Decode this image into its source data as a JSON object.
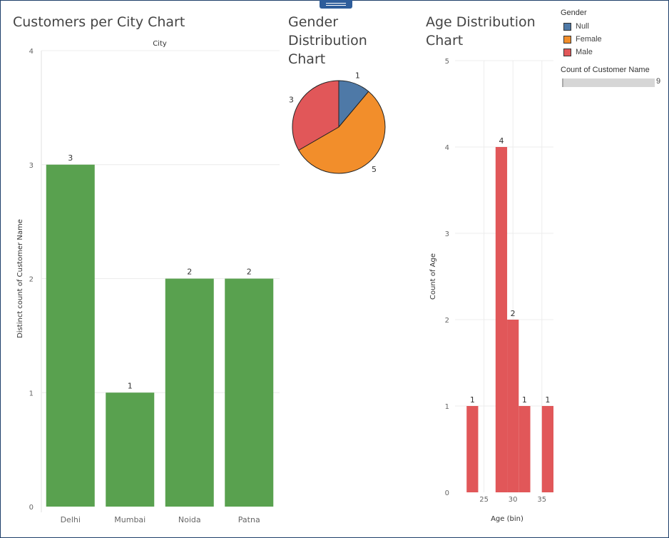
{
  "colors": {
    "green": "#59a14f",
    "null": "#4e79a7",
    "female": "#f28e2b",
    "male": "#e15759",
    "grid": "#ececec",
    "axis_text": "#666666"
  },
  "charts": {
    "city": {
      "title": "Customers per City Chart"
    },
    "gender": {
      "title_lines": [
        "Gender",
        "Distribution",
        "Chart"
      ]
    },
    "age": {
      "title_lines": [
        "Age Distribution",
        "Chart"
      ]
    }
  },
  "legend": {
    "title": "Gender",
    "items": [
      {
        "label": "Null",
        "color": "#4e79a7"
      },
      {
        "label": "Female",
        "color": "#f28e2b"
      },
      {
        "label": "Male",
        "color": "#e15759"
      }
    ],
    "size_title": "Count of Customer Name",
    "size_max_label": "9"
  },
  "chart_data": [
    {
      "type": "bar",
      "title": "Customers per City Chart",
      "column_header": "City",
      "ylabel": "Distinct count of Customer Name",
      "categories": [
        "Delhi",
        "Mumbai",
        "Noida",
        "Patna"
      ],
      "values": [
        3,
        1,
        2,
        2
      ],
      "ylim": [
        0,
        4
      ],
      "yticks": [
        0,
        1,
        2,
        3,
        4
      ],
      "color": "#59a14f",
      "data_labels": true,
      "grid": true
    },
    {
      "type": "pie",
      "title": "Gender Distribution Chart",
      "slices": [
        {
          "label": "Null",
          "value": 1,
          "color": "#4e79a7"
        },
        {
          "label": "Female",
          "value": 5,
          "color": "#f28e2b"
        },
        {
          "label": "Male",
          "value": 3,
          "color": "#e15759"
        }
      ]
    },
    {
      "type": "bar",
      "title": "Age Distribution Chart",
      "xlabel": "Age (bin)",
      "ylabel": "Count of Age",
      "bins": [
        22,
        27,
        29,
        31,
        35
      ],
      "values": [
        1,
        4,
        2,
        1,
        1
      ],
      "xlim": [
        20,
        37
      ],
      "xticks": [
        25,
        30,
        35
      ],
      "ylim": [
        0,
        5
      ],
      "yticks": [
        0,
        1,
        2,
        3,
        4,
        5
      ],
      "color": "#e15759",
      "data_labels": true,
      "grid": true
    }
  ]
}
